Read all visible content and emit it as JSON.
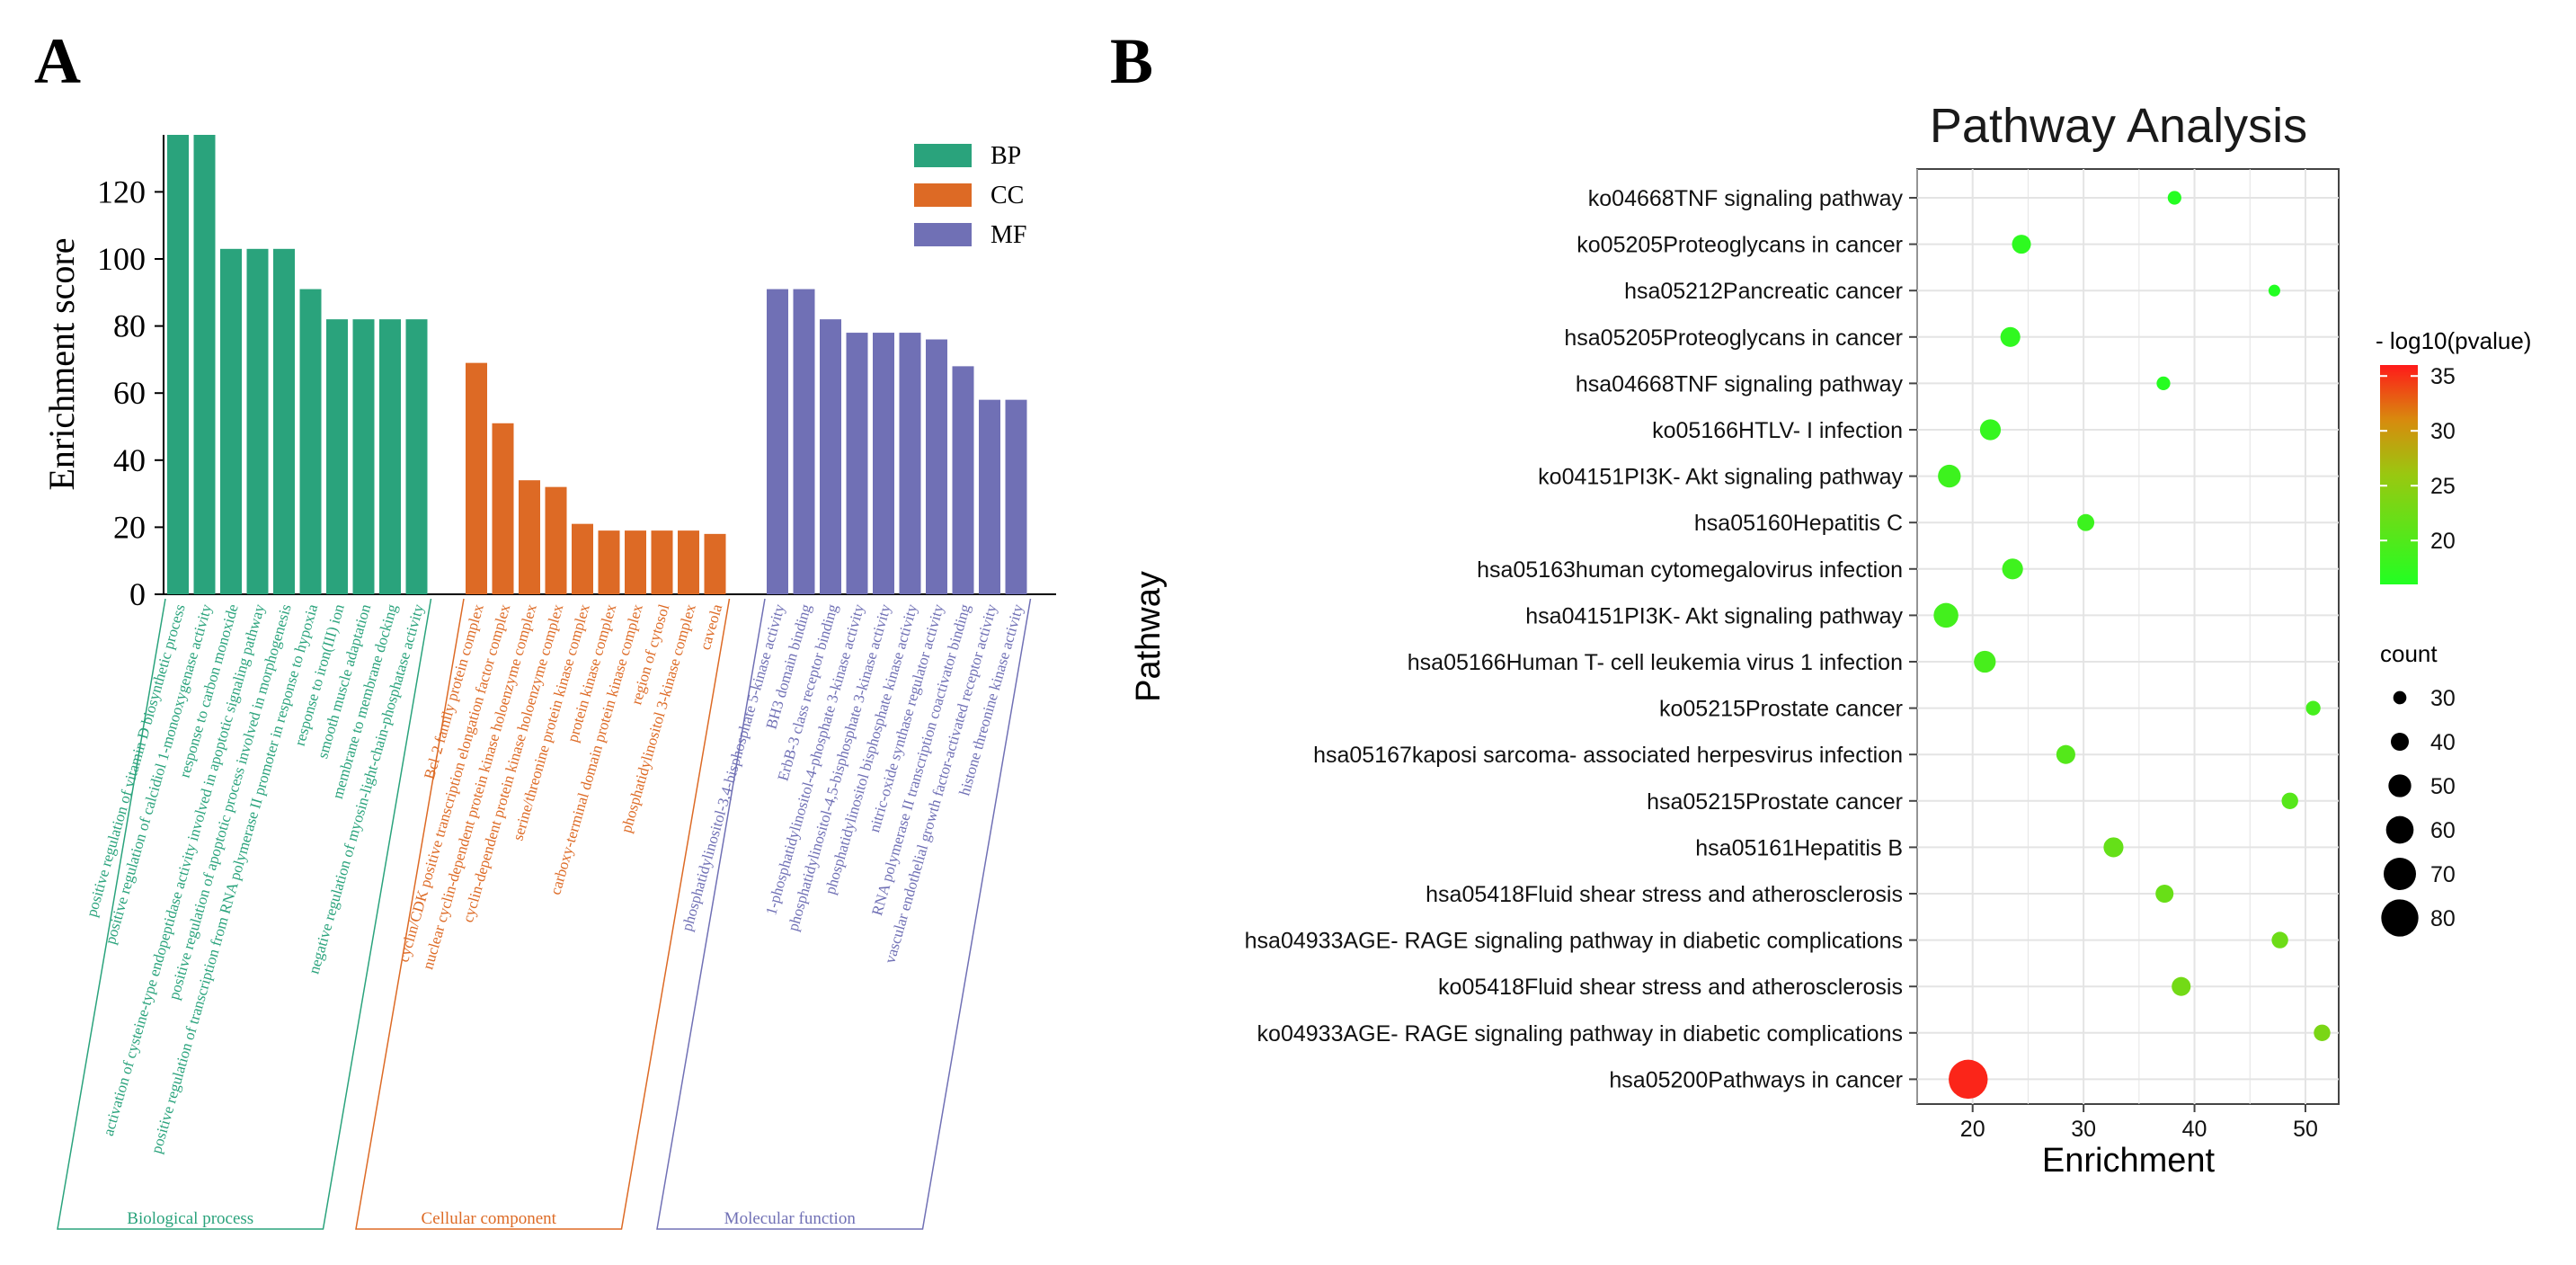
{
  "panel_a_label": "A",
  "panel_b_label": "B",
  "chart_data": [
    {
      "type": "bar",
      "panel": "A",
      "title": "",
      "xlabel": "",
      "ylabel": "Enrichment score",
      "ylim": [
        0,
        137
      ],
      "yticks": [
        0,
        20,
        40,
        60,
        80,
        100,
        120
      ],
      "grid": false,
      "legend": {
        "position": "top-right",
        "entries": [
          {
            "label": "BP",
            "color": "#2AA37C"
          },
          {
            "label": "CC",
            "color": "#DD6A25"
          },
          {
            "label": "MF",
            "color": "#7070B5"
          }
        ]
      },
      "groups": [
        {
          "key": "BP",
          "name": "Biological process",
          "color": "#2AA37C",
          "categories": [
            "positive regulation of vitamin D biosynthetic process",
            "positive regulation of calcidiol 1-monooxygenase activity",
            "response to carbon monoxide",
            "activation of cysteine-type endopeptidase activity involved in apoptotic signaling pathway",
            "positive regulation of apoptotic process involved in morphogenesis",
            "positive regulation of transcription from RNA polymerase II promoter in response to hypoxia",
            "response to iron(III) ion",
            "smooth muscle adaptation",
            "membrane to membrane docking",
            "negative regulation of myosin-light-chain-phosphatase activity"
          ],
          "values": [
            137,
            137,
            103,
            103,
            103,
            91,
            82,
            82,
            82,
            82
          ]
        },
        {
          "key": "CC",
          "name": "Cellular component",
          "color": "#DD6A25",
          "categories": [
            "Bcl-2 family protein complex",
            "cyclin/CDK positive transcription elongation factor complex",
            "nuclear cyclin-dependent protein kinase holoenzyme complex",
            "cyclin-dependent protein kinase holoenzyme complex",
            "serine/threonine protein kinase complex",
            "protein kinase complex",
            "carboxy-terminal domain protein kinase complex",
            "region of cytosol",
            "phosphatidylinositol 3-kinase complex",
            "caveola"
          ],
          "values": [
            69,
            51,
            34,
            32,
            21,
            19,
            19,
            19,
            19,
            18
          ]
        },
        {
          "key": "MF",
          "name": "Molecular function",
          "color": "#7070B5",
          "categories": [
            "phosphatidylinositol-3,4-bisphosphate 5-kinase activity",
            "BH3 domain binding",
            "ErbB-3 class receptor binding",
            "1-phosphatidylinositol-4-phosphate 3-kinase activity",
            "phosphatidylinositol-4,5-bisphosphate 3-kinase activity",
            "phosphatidylinositol bisphosphate kinase activity",
            "nitric-oxide synthase regulator activity",
            "RNA polymerase II transcription coactivator binding",
            "vascular endothelial growth factor-activated receptor activity",
            "histone threonine kinase activity"
          ],
          "values": [
            91,
            91,
            82,
            78,
            78,
            78,
            76,
            68,
            58,
            58
          ]
        }
      ]
    },
    {
      "type": "scatter",
      "panel": "B",
      "title": "Pathway Analysis",
      "xlabel": "Enrichment",
      "ylabel": "Pathway",
      "xlim": [
        15,
        53
      ],
      "xticks": [
        20,
        30,
        40,
        50
      ],
      "grid": true,
      "color_legend": {
        "title": "- log10(pvalue)",
        "ticks": [
          20,
          25,
          30,
          35
        ],
        "range": [
          16,
          36
        ],
        "low_color": "#22FF22",
        "high_color": "#FF1A1A"
      },
      "size_legend": {
        "title": "count",
        "ticks": [
          30,
          40,
          50,
          60,
          70,
          80
        ],
        "range": [
          25,
          85
        ]
      },
      "points": [
        {
          "pathway": "ko04668TNF signaling pathway",
          "enrichment": 38.2,
          "neg_log10_p": 16.2,
          "count": 31
        },
        {
          "pathway": "ko05205Proteoglycans in cancer",
          "enrichment": 24.4,
          "neg_log10_p": 17.0,
          "count": 42
        },
        {
          "pathway": "hsa05212Pancreatic cancer",
          "enrichment": 47.2,
          "neg_log10_p": 16.0,
          "count": 27
        },
        {
          "pathway": "hsa05205Proteoglycans in cancer",
          "enrichment": 23.4,
          "neg_log10_p": 17.2,
          "count": 44
        },
        {
          "pathway": "hsa04668TNF signaling pathway",
          "enrichment": 37.2,
          "neg_log10_p": 16.3,
          "count": 31
        },
        {
          "pathway": "ko05166HTLV- I infection",
          "enrichment": 21.6,
          "neg_log10_p": 17.6,
          "count": 46
        },
        {
          "pathway": "ko04151PI3K- Akt signaling pathway",
          "enrichment": 17.9,
          "neg_log10_p": 18.3,
          "count": 50
        },
        {
          "pathway": "hsa05160Hepatitis C",
          "enrichment": 30.2,
          "neg_log10_p": 18.2,
          "count": 38
        },
        {
          "pathway": "hsa05163human cytomegalovirus infection",
          "enrichment": 23.6,
          "neg_log10_p": 18.4,
          "count": 46
        },
        {
          "pathway": "hsa04151PI3K- Akt signaling pathway",
          "enrichment": 17.6,
          "neg_log10_p": 18.8,
          "count": 54
        },
        {
          "pathway": "hsa05166Human T- cell leukemia virus 1 infection",
          "enrichment": 21.1,
          "neg_log10_p": 19.1,
          "count": 48
        },
        {
          "pathway": "ko05215Prostate cancer",
          "enrichment": 50.7,
          "neg_log10_p": 19.0,
          "count": 33
        },
        {
          "pathway": "hsa05167kaposi sarcoma- associated herpesvirus infection",
          "enrichment": 28.4,
          "neg_log10_p": 20.2,
          "count": 42
        },
        {
          "pathway": "hsa05215Prostate cancer",
          "enrichment": 48.6,
          "neg_log10_p": 20.4,
          "count": 37
        },
        {
          "pathway": "hsa05161Hepatitis B",
          "enrichment": 32.7,
          "neg_log10_p": 21.6,
          "count": 44
        },
        {
          "pathway": "hsa05418Fluid shear stress and atherosclerosis",
          "enrichment": 37.3,
          "neg_log10_p": 21.9,
          "count": 40
        },
        {
          "pathway": "hsa04933AGE- RAGE signaling pathway in diabetic complications",
          "enrichment": 47.7,
          "neg_log10_p": 22.3,
          "count": 37
        },
        {
          "pathway": "ko05418Fluid shear stress and atherosclerosis",
          "enrichment": 38.8,
          "neg_log10_p": 22.8,
          "count": 42
        },
        {
          "pathway": "ko04933AGE- RAGE signaling pathway in diabetic complications",
          "enrichment": 51.5,
          "neg_log10_p": 23.4,
          "count": 37
        },
        {
          "pathway": "hsa05200Pathways in cancer",
          "enrichment": 19.6,
          "neg_log10_p": 35.5,
          "count": 84
        }
      ]
    }
  ]
}
